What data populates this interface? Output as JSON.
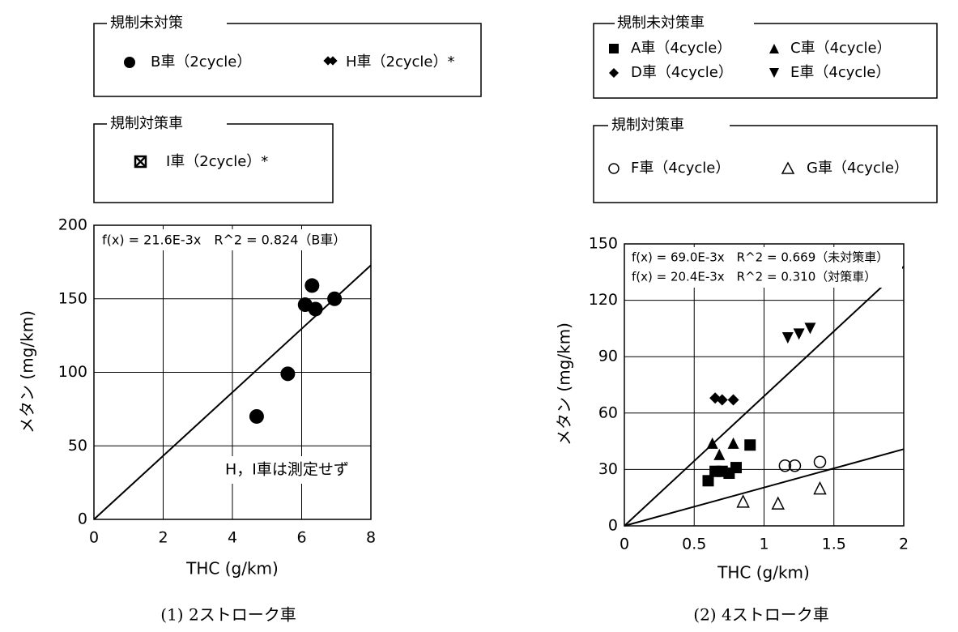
{
  "chart_data": [
    {
      "type": "scatter",
      "caption": "(1) 2ストローク車",
      "xlabel": "THC (g/km)",
      "ylabel": "メタン (mg/km)",
      "xlim": [
        0,
        8
      ],
      "ylim": [
        0,
        200
      ],
      "xticks": [
        "0",
        "2",
        "4",
        "6",
        "8"
      ],
      "yticks": [
        "0",
        "50",
        "100",
        "150",
        "200"
      ],
      "grid": true,
      "legend_boxes": [
        {
          "title": "規制未対策",
          "entries": [
            {
              "marker": "circle-filled",
              "label": "B車（2cycle）"
            },
            {
              "marker": "diamond-cross",
              "label": "H車（2cycle）*"
            }
          ]
        },
        {
          "title": "規制対策車",
          "entries": [
            {
              "marker": "square-x",
              "label": "I車（2cycle）*"
            }
          ]
        }
      ],
      "equation_text": "f(x) = 21.6E-3x　R^2 = 0.824（B車）",
      "annotation": "H，I車は測定せず",
      "series": [
        {
          "name": "B車（2cycle）",
          "marker": "circle-filled",
          "points": [
            [
              4.7,
              70
            ],
            [
              5.6,
              99
            ],
            [
              6.1,
              146
            ],
            [
              6.3,
              159
            ],
            [
              6.4,
              143
            ],
            [
              6.95,
              150
            ]
          ]
        }
      ],
      "fit_lines": [
        {
          "slope_mg_per_g": 21.6,
          "x_range": [
            0,
            8
          ]
        }
      ]
    },
    {
      "type": "scatter",
      "caption": "(2) 4ストローク車",
      "xlabel": "THC (g/km)",
      "ylabel": "メタン (mg/km)",
      "xlim": [
        0,
        2
      ],
      "ylim": [
        0,
        150
      ],
      "xticks": [
        "0",
        "0.5",
        "1",
        "1.5",
        "2"
      ],
      "yticks": [
        "0",
        "30",
        "60",
        "90",
        "120",
        "150"
      ],
      "grid": true,
      "legend_boxes": [
        {
          "title": "規制未対策車",
          "entries": [
            {
              "marker": "square-filled",
              "label": "A車（4cycle）"
            },
            {
              "marker": "triangle-up-filled",
              "label": "C車（4cycle）"
            },
            {
              "marker": "diamond-filled",
              "label": "D車（4cycle）"
            },
            {
              "marker": "triangle-down-filled",
              "label": "E車（4cycle）"
            }
          ]
        },
        {
          "title": "規制対策車",
          "entries": [
            {
              "marker": "circle-open",
              "label": "F車（4cycle）"
            },
            {
              "marker": "triangle-up-open",
              "label": "G車（4cycle）"
            }
          ]
        }
      ],
      "equation_texts": [
        "f(x) = 69.0E-3x　R^2 = 0.669（未対策車）",
        "f(x) = 20.4E-3x　R^2 = 0.310（対策車）"
      ],
      "series": [
        {
          "name": "A車（4cycle）",
          "marker": "square-filled",
          "points": [
            [
              0.6,
              24
            ],
            [
              0.65,
              29
            ],
            [
              0.7,
              29
            ],
            [
              0.75,
              28
            ],
            [
              0.8,
              31
            ],
            [
              0.9,
              43
            ]
          ]
        },
        {
          "name": "C車（4cycle）",
          "marker": "triangle-up-filled",
          "points": [
            [
              0.63,
              44
            ],
            [
              0.68,
              38
            ],
            [
              0.78,
              44
            ]
          ]
        },
        {
          "name": "D車（4cycle）",
          "marker": "diamond-filled",
          "points": [
            [
              0.65,
              68
            ],
            [
              0.7,
              67
            ],
            [
              0.78,
              67
            ]
          ]
        },
        {
          "name": "E車（4cycle）",
          "marker": "triangle-down-filled",
          "points": [
            [
              1.17,
              100
            ],
            [
              1.25,
              102
            ],
            [
              1.33,
              105
            ]
          ]
        },
        {
          "name": "F車（4cycle）",
          "marker": "circle-open",
          "points": [
            [
              1.15,
              32
            ],
            [
              1.22,
              32
            ],
            [
              1.4,
              34
            ]
          ]
        },
        {
          "name": "G車（4cycle）",
          "marker": "triangle-up-open",
          "points": [
            [
              0.85,
              13
            ],
            [
              1.1,
              12
            ],
            [
              1.4,
              20
            ]
          ]
        }
      ],
      "fit_lines": [
        {
          "slope_mg_per_g": 69.0,
          "x_range": [
            0,
            2
          ]
        },
        {
          "slope_mg_per_g": 20.4,
          "x_range": [
            0,
            2
          ]
        }
      ]
    }
  ]
}
